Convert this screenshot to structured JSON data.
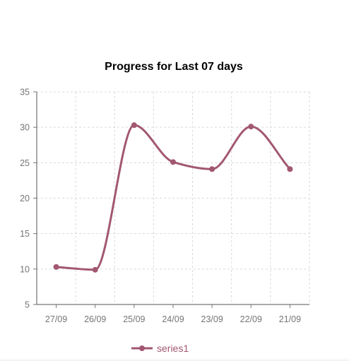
{
  "chart_data": {
    "type": "line",
    "title": "Progress for Last 07 days",
    "categories": [
      "27/09",
      "26/09",
      "25/09",
      "24/09",
      "23/09",
      "22/09",
      "21/09"
    ],
    "series": [
      {
        "name": "series1",
        "values": [
          10.3,
          9.9,
          30.3,
          25.1,
          24.1,
          30.1,
          24.1
        ]
      }
    ],
    "ylim": [
      5,
      35
    ],
    "yticks": [
      5,
      10,
      15,
      20,
      25,
      30,
      35
    ],
    "grid": true,
    "legend": "bottom-left",
    "colors": {
      "series1": "#a25772",
      "grid": "#d9d9d9",
      "axis": "#555555"
    }
  }
}
